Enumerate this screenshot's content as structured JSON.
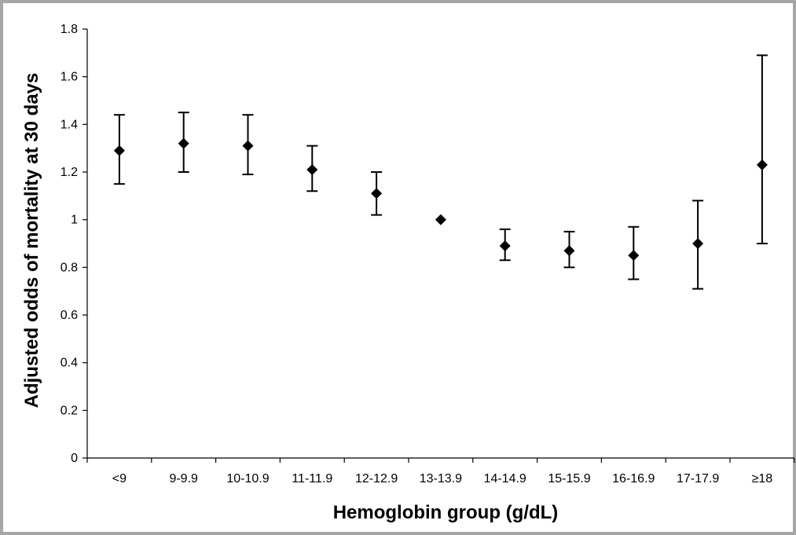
{
  "chart_data": {
    "type": "scatter",
    "title": "",
    "xlabel": "Hemoglobin group (g/dL)",
    "ylabel": "Adjusted odds of mortality at 30 days",
    "categories": [
      "<9",
      "9-9.9",
      "10-10.9",
      "11-11.9",
      "12-12.9",
      "13-13.9",
      "14-14.9",
      "15-15.9",
      "16-16.9",
      "17-17.9",
      "≥18"
    ],
    "values": [
      1.29,
      1.32,
      1.31,
      1.21,
      1.11,
      1.0,
      0.89,
      0.87,
      0.85,
      0.9,
      1.23
    ],
    "lower": [
      1.15,
      1.2,
      1.19,
      1.12,
      1.02,
      1.0,
      0.83,
      0.8,
      0.75,
      0.71,
      0.9
    ],
    "upper": [
      1.44,
      1.45,
      1.44,
      1.31,
      1.2,
      1.0,
      0.96,
      0.95,
      0.97,
      1.08,
      1.69
    ],
    "ylim": [
      0,
      1.8
    ],
    "yticks": [
      "0",
      "0.2",
      "0.4",
      "0.6",
      "0.8",
      "1",
      "1.2",
      "1.4",
      "1.6",
      "1.8"
    ],
    "ytick_values": [
      0,
      0.2,
      0.4,
      0.6,
      0.8,
      1.0,
      1.2,
      1.4,
      1.6,
      1.8
    ],
    "grid": false,
    "marker": "diamond",
    "error_bars": true,
    "colors": {
      "marker": "#000000",
      "axis": "#000000",
      "frame": "#a6a6a6"
    }
  }
}
